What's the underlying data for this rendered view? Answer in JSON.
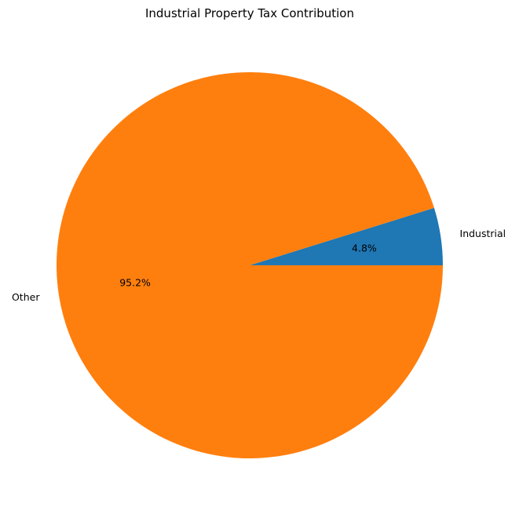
{
  "chart_data": {
    "type": "pie",
    "title": "Industrial Property Tax Contribution",
    "categories": [
      "Industrial",
      "Other"
    ],
    "values": [
      4.8,
      95.2
    ],
    "labels": [
      "Industrial",
      "Other"
    ],
    "percent_labels": [
      "4.8%",
      "95.2%"
    ],
    "colors": [
      "#1f77b4",
      "#ff7f0e"
    ],
    "start_angle_deg": 0,
    "direction": "counterclockwise",
    "legend": "none"
  }
}
